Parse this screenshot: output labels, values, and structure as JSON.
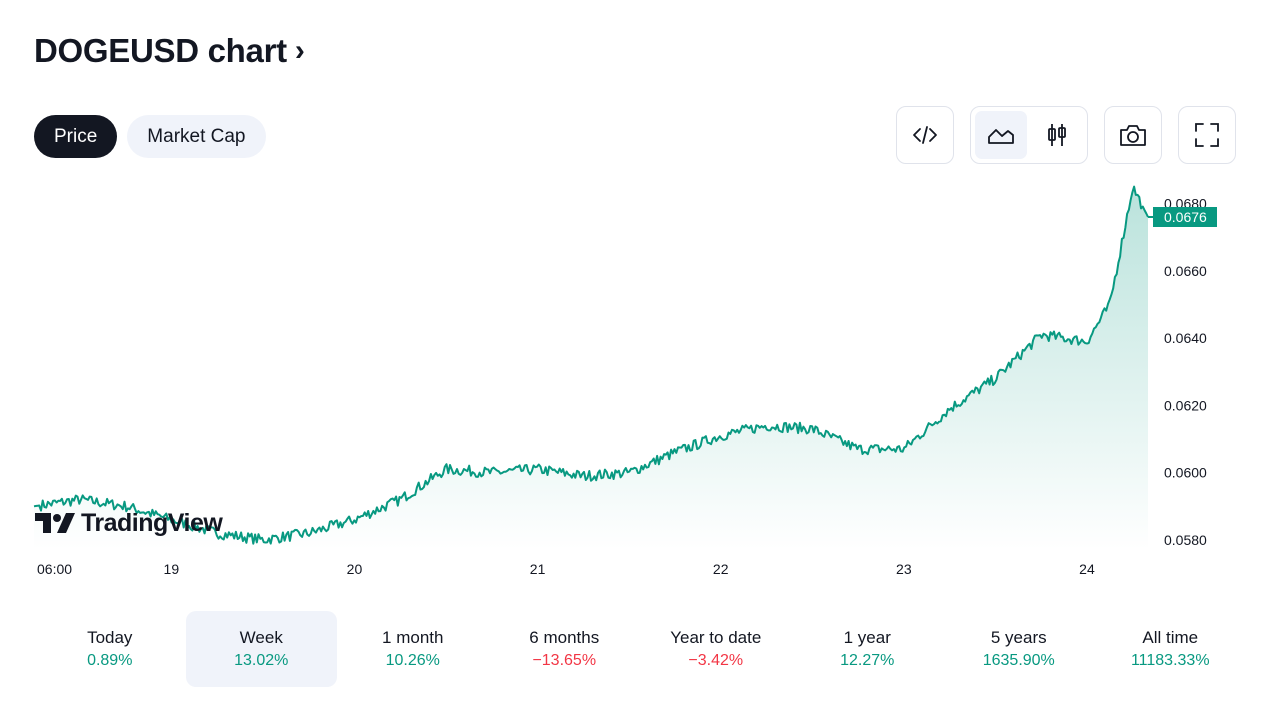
{
  "header": {
    "title": "DOGEUSD chart",
    "chevron": "›"
  },
  "tabs": [
    {
      "label": "Price",
      "active": true
    },
    {
      "label": "Market Cap",
      "active": false
    }
  ],
  "toolbar": {
    "embed_icon": "code-icon",
    "chart_styles": [
      "area-chart-icon",
      "candles-icon"
    ],
    "active_style": "area-chart-icon",
    "snapshot_icon": "camera-icon",
    "fullscreen_icon": "fullscreen-icon"
  },
  "watermark": "TradingView",
  "colors": {
    "line": "#089981",
    "badge": "#089981",
    "positive": "#089981",
    "negative": "#f23645"
  },
  "chart_data": {
    "type": "area",
    "symbol": "DOGEUSD",
    "x_tick_labels": [
      "06:00",
      "19",
      "20",
      "21",
      "22",
      "23",
      "24"
    ],
    "y_tick_labels": [
      "0.0680",
      "0.0660",
      "0.0640",
      "0.0620",
      "0.0600",
      "0.0580"
    ],
    "ylim": [
      0.0577,
      0.0687
    ],
    "last_price": "0.0676",
    "series": [
      {
        "x": [
          "2023-10-18T06:00",
          "2023-10-18T12:00",
          "2023-10-18T18:00",
          "2023-10-19T00:00",
          "2023-10-19T06:00",
          "2023-10-19T12:00",
          "2023-10-19T18:00",
          "2023-10-20T00:00",
          "2023-10-20T06:00",
          "2023-10-20T12:00",
          "2023-10-20T18:00",
          "2023-10-21T00:00",
          "2023-10-21T06:00",
          "2023-10-21T12:00",
          "2023-10-21T18:00",
          "2023-10-22T00:00",
          "2023-10-22T06:00",
          "2023-10-22T12:00",
          "2023-10-22T18:00",
          "2023-10-23T00:00",
          "2023-10-23T06:00",
          "2023-10-23T12:00",
          "2023-10-23T18:00",
          "2023-10-24T00:00",
          "2023-10-24T03:00",
          "2023-10-24T06:00",
          "2023-10-24T08:00"
        ],
        "y": [
          0.059,
          0.0592,
          0.059,
          0.0586,
          0.0582,
          0.058,
          0.0582,
          0.0586,
          0.0592,
          0.0601,
          0.06,
          0.0601,
          0.0599,
          0.06,
          0.0606,
          0.0611,
          0.0614,
          0.0613,
          0.0607,
          0.0607,
          0.0619,
          0.0628,
          0.0641,
          0.0639,
          0.065,
          0.0685,
          0.0676
        ]
      }
    ],
    "grid": false
  },
  "periods": [
    {
      "label": "Today",
      "value": "0.89%",
      "sign": "pos",
      "active": false
    },
    {
      "label": "Week",
      "value": "13.02%",
      "sign": "pos",
      "active": true
    },
    {
      "label": "1 month",
      "value": "10.26%",
      "sign": "pos",
      "active": false
    },
    {
      "label": "6 months",
      "value": "−13.65%",
      "sign": "neg",
      "active": false
    },
    {
      "label": "Year to date",
      "value": "−3.42%",
      "sign": "neg",
      "active": false
    },
    {
      "label": "1 year",
      "value": "12.27%",
      "sign": "pos",
      "active": false
    },
    {
      "label": "5 years",
      "value": "1635.90%",
      "sign": "pos",
      "active": false
    },
    {
      "label": "All time",
      "value": "11183.33%",
      "sign": "pos",
      "active": false
    }
  ]
}
